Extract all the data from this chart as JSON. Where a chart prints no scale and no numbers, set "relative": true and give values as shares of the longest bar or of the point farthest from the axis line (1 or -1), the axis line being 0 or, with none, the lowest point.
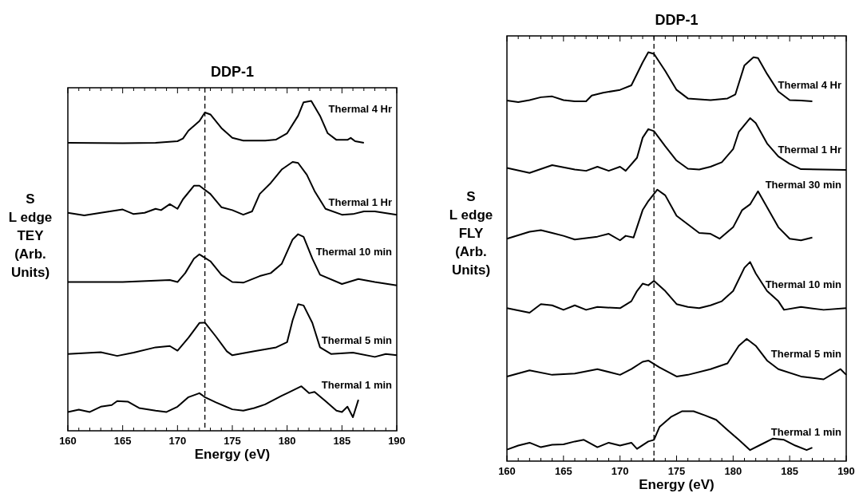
{
  "chart_data": [
    {
      "type": "line",
      "title": "DDP-1",
      "xlabel": "Energy (eV)",
      "ylabel": "S\nL edge\nTEY\n(Arb.\nUnits)",
      "relative": true,
      "grid": false,
      "marker": "none",
      "line_style": "solid",
      "xlim": [
        160,
        190
      ],
      "xticks": [
        160,
        {
          "value": 161,
          "label": null
        },
        {
          "value": 162,
          "label": null
        },
        {
          "value": 163,
          "label": null
        },
        {
          "value": 164,
          "label": null
        },
        165,
        {
          "value": 166,
          "label": null
        },
        {
          "value": 167,
          "label": null
        },
        {
          "value": 168,
          "label": null
        },
        {
          "value": 169,
          "label": null
        },
        170,
        {
          "value": 171,
          "label": null
        },
        {
          "value": 172,
          "label": null
        },
        {
          "value": 173,
          "label": null
        },
        {
          "value": 174,
          "label": null
        },
        175,
        {
          "value": 176,
          "label": null
        },
        {
          "value": 177,
          "label": null
        },
        {
          "value": 178,
          "label": null
        },
        {
          "value": 179,
          "label": null
        },
        180,
        {
          "value": 181,
          "label": null
        },
        {
          "value": 182,
          "label": null
        },
        {
          "value": 183,
          "label": null
        },
        {
          "value": 184,
          "label": null
        },
        185,
        {
          "value": 186,
          "label": null
        },
        {
          "value": 187,
          "label": null
        },
        {
          "value": 188,
          "label": null
        },
        {
          "value": 189,
          "label": null
        },
        190
      ],
      "ref_lines": [
        {
          "axis": "x",
          "value": 172.5,
          "line_style": "dashed",
          "color": "#000000"
        }
      ],
      "series": [
        {
          "name": "Thermal 4 Hr",
          "color": "#000000",
          "x": [
            160,
            165,
            168,
            170,
            170.5,
            171,
            172,
            172.5,
            173,
            174,
            175,
            176,
            178,
            179,
            180,
            181,
            181.5,
            182.2,
            183,
            183.7,
            184.5,
            185.5,
            185.8,
            186.2,
            187
          ],
          "values": [
            0.873,
            0.872,
            0.873,
            0.878,
            0.886,
            0.91,
            0.939,
            0.965,
            0.959,
            0.918,
            0.888,
            0.88,
            0.88,
            0.883,
            0.902,
            0.955,
            0.996,
            1.0,
            0.955,
            0.902,
            0.882,
            0.882,
            0.888,
            0.878,
            0.873
          ]
        },
        {
          "name": "Thermal 1 Hr",
          "color": "#000000",
          "x": [
            160,
            161.5,
            163,
            165,
            166,
            167,
            168,
            168.5,
            169.3,
            170,
            170.5,
            171.5,
            172,
            173,
            174,
            175,
            176,
            176.8,
            177.5,
            178.5,
            179.5,
            180.5,
            181,
            181.8,
            182.5,
            183.5,
            185,
            186,
            187,
            188,
            190
          ],
          "values": [
            0.661,
            0.653,
            0.661,
            0.671,
            0.657,
            0.661,
            0.673,
            0.669,
            0.687,
            0.673,
            0.702,
            0.743,
            0.743,
            0.718,
            0.678,
            0.669,
            0.655,
            0.665,
            0.718,
            0.751,
            0.792,
            0.815,
            0.812,
            0.776,
            0.727,
            0.673,
            0.655,
            0.657,
            0.665,
            0.665,
            0.655
          ]
        },
        {
          "name": "Thermal 10 min",
          "color": "#000000",
          "x": [
            160,
            165,
            169.3,
            170,
            170.7,
            171.5,
            172,
            173,
            174,
            175,
            176,
            177.5,
            178.5,
            179.5,
            180.5,
            181,
            181.5,
            182.3,
            183,
            185,
            186.5,
            188,
            190
          ],
          "values": [
            0.451,
            0.451,
            0.457,
            0.451,
            0.478,
            0.522,
            0.535,
            0.514,
            0.473,
            0.451,
            0.449,
            0.469,
            0.478,
            0.506,
            0.58,
            0.596,
            0.588,
            0.522,
            0.473,
            0.445,
            0.46,
            0.451,
            0.441
          ]
        },
        {
          "name": "Thermal 5 min",
          "color": "#000000",
          "x": [
            160,
            163,
            164.5,
            166,
            168,
            169.3,
            170,
            171,
            172,
            172.5,
            173.5,
            174.5,
            175,
            177,
            179,
            180,
            180.5,
            181,
            181.5,
            182.3,
            183,
            184,
            186,
            188,
            189,
            190
          ],
          "values": [
            0.233,
            0.238,
            0.227,
            0.237,
            0.253,
            0.257,
            0.243,
            0.282,
            0.327,
            0.328,
            0.286,
            0.241,
            0.229,
            0.241,
            0.253,
            0.269,
            0.335,
            0.384,
            0.38,
            0.327,
            0.253,
            0.233,
            0.237,
            0.224,
            0.233,
            0.229
          ]
        },
        {
          "name": "Thermal 1 min",
          "color": "#000000",
          "x": [
            160,
            161,
            162,
            163,
            164,
            164.5,
            165.5,
            166.5,
            168,
            169,
            170,
            171,
            172,
            172.5,
            173.5,
            175,
            176,
            177,
            178,
            179.5,
            180,
            181.3,
            182,
            182.5,
            183.5,
            184.5,
            185,
            185.5,
            186,
            186.5
          ],
          "values": [
            0.057,
            0.064,
            0.057,
            0.073,
            0.078,
            0.09,
            0.088,
            0.069,
            0.061,
            0.057,
            0.073,
            0.102,
            0.114,
            0.102,
            0.086,
            0.065,
            0.061,
            0.069,
            0.08,
            0.106,
            0.114,
            0.135,
            0.114,
            0.118,
            0.09,
            0.061,
            0.057,
            0.073,
            0.041,
            0.094
          ]
        }
      ]
    },
    {
      "type": "line",
      "title": "DDP-1",
      "xlabel": "Energy (eV)",
      "ylabel": "S\nL edge\nFLY\n(Arb.\nUnits)",
      "relative": true,
      "grid": false,
      "marker": "none",
      "line_style": "solid",
      "xlim": [
        160,
        190
      ],
      "xticks": [
        160,
        {
          "value": 161,
          "label": null
        },
        {
          "value": 162,
          "label": null
        },
        {
          "value": 163,
          "label": null
        },
        {
          "value": 164,
          "label": null
        },
        165,
        {
          "value": 166,
          "label": null
        },
        {
          "value": 167,
          "label": null
        },
        {
          "value": 168,
          "label": null
        },
        {
          "value": 169,
          "label": null
        },
        170,
        {
          "value": 171,
          "label": null
        },
        {
          "value": 172,
          "label": null
        },
        {
          "value": 173,
          "label": null
        },
        {
          "value": 174,
          "label": null
        },
        175,
        {
          "value": 176,
          "label": null
        },
        {
          "value": 177,
          "label": null
        },
        {
          "value": 178,
          "label": null
        },
        {
          "value": 179,
          "label": null
        },
        180,
        {
          "value": 181,
          "label": null
        },
        {
          "value": 182,
          "label": null
        },
        {
          "value": 183,
          "label": null
        },
        {
          "value": 184,
          "label": null
        },
        185,
        {
          "value": 186,
          "label": null
        },
        {
          "value": 187,
          "label": null
        },
        {
          "value": 188,
          "label": null
        },
        {
          "value": 189,
          "label": null
        },
        190
      ],
      "ref_lines": [
        {
          "axis": "x",
          "value": 173,
          "line_style": "dashed",
          "color": "#000000"
        }
      ],
      "series": [
        {
          "name": "Thermal 4 Hr",
          "color": "#000000",
          "x": [
            160,
            161,
            162,
            163,
            164,
            165,
            166,
            167,
            167.5,
            168.5,
            170,
            171,
            172,
            172.5,
            173,
            174,
            175,
            176,
            178,
            179.5,
            180.2,
            181,
            181.8,
            182.2,
            183,
            184,
            185,
            186,
            187
          ],
          "values": [
            0.882,
            0.878,
            0.883,
            0.89,
            0.892,
            0.883,
            0.88,
            0.88,
            0.894,
            0.901,
            0.908,
            0.919,
            0.975,
            1.0,
            0.996,
            0.954,
            0.908,
            0.887,
            0.883,
            0.887,
            0.897,
            0.968,
            0.988,
            0.986,
            0.947,
            0.904,
            0.883,
            0.882,
            0.88
          ]
        },
        {
          "name": "Thermal 1 Hr",
          "color": "#000000",
          "x": [
            160,
            162,
            164,
            166,
            167,
            168,
            169,
            170,
            170.5,
            171.5,
            172,
            172.5,
            173,
            174,
            175,
            176,
            177,
            178,
            179,
            180,
            180.5,
            181.5,
            182,
            183,
            184,
            185,
            186,
            190
          ],
          "values": [
            0.717,
            0.705,
            0.724,
            0.713,
            0.71,
            0.72,
            0.71,
            0.72,
            0.71,
            0.742,
            0.791,
            0.812,
            0.807,
            0.77,
            0.735,
            0.715,
            0.713,
            0.72,
            0.731,
            0.763,
            0.805,
            0.839,
            0.827,
            0.777,
            0.745,
            0.727,
            0.714,
            0.712
          ]
        },
        {
          "name": "Thermal 30 min",
          "color": "#000000",
          "x": [
            160,
            162,
            163,
            164,
            165,
            166,
            168,
            169,
            170,
            170.5,
            171.2,
            172,
            172.5,
            173.3,
            174,
            175,
            176,
            177,
            178,
            178.8,
            180,
            180.8,
            181.5,
            182.2,
            183,
            184,
            185,
            186,
            187
          ],
          "values": [
            0.544,
            0.561,
            0.565,
            0.558,
            0.551,
            0.542,
            0.549,
            0.556,
            0.54,
            0.551,
            0.547,
            0.614,
            0.636,
            0.664,
            0.65,
            0.6,
            0.579,
            0.558,
            0.556,
            0.544,
            0.572,
            0.614,
            0.628,
            0.66,
            0.621,
            0.572,
            0.544,
            0.54,
            0.547
          ]
        },
        {
          "name": "Thermal 10 min",
          "color": "#000000",
          "x": [
            160,
            162,
            163,
            164,
            165,
            166,
            167,
            168,
            170,
            171,
            171.5,
            172,
            172.5,
            173,
            174,
            175,
            176,
            177,
            178,
            179,
            180,
            181,
            181.5,
            182,
            183,
            184,
            184.5,
            186,
            188,
            190
          ],
          "values": [
            0.374,
            0.363,
            0.384,
            0.381,
            0.37,
            0.381,
            0.37,
            0.377,
            0.374,
            0.391,
            0.416,
            0.434,
            0.43,
            0.441,
            0.416,
            0.384,
            0.377,
            0.374,
            0.381,
            0.391,
            0.416,
            0.473,
            0.487,
            0.459,
            0.416,
            0.391,
            0.37,
            0.377,
            0.37,
            0.374
          ]
        },
        {
          "name": "Thermal 5 min",
          "color": "#000000",
          "x": [
            160,
            162,
            164,
            166,
            168,
            170,
            171,
            172,
            172.5,
            173.5,
            175,
            176,
            178,
            179.5,
            180.5,
            181.2,
            182,
            183,
            184,
            186,
            188,
            189.5,
            190
          ],
          "values": [
            0.207,
            0.222,
            0.211,
            0.214,
            0.225,
            0.211,
            0.225,
            0.243,
            0.246,
            0.229,
            0.207,
            0.211,
            0.225,
            0.239,
            0.282,
            0.299,
            0.282,
            0.246,
            0.225,
            0.207,
            0.2,
            0.225,
            0.211
          ]
        },
        {
          "name": "Thermal 1 min",
          "color": "#000000",
          "x": [
            160,
            161,
            162,
            163,
            164,
            165,
            166,
            166.8,
            168,
            169,
            170,
            171,
            171.5,
            172.5,
            173,
            173.5,
            174.5,
            175.5,
            176.5,
            177.5,
            178.5,
            179.5,
            180.5,
            181.5,
            182.5,
            183.5,
            184.5,
            185.5,
            186.5,
            187
          ],
          "values": [
            0.028,
            0.038,
            0.045,
            0.034,
            0.04,
            0.041,
            0.048,
            0.052,
            0.034,
            0.045,
            0.038,
            0.045,
            0.03,
            0.048,
            0.052,
            0.084,
            0.108,
            0.122,
            0.122,
            0.112,
            0.101,
            0.076,
            0.052,
            0.027,
            0.041,
            0.055,
            0.052,
            0.038,
            0.027,
            0.033
          ]
        }
      ]
    }
  ]
}
